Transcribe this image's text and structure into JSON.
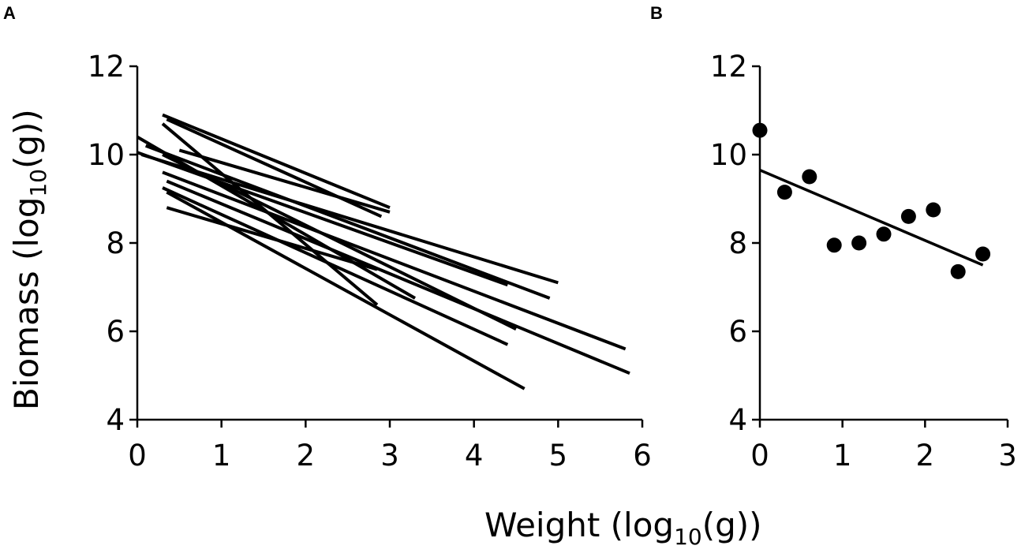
{
  "chart_data": [
    {
      "panel": "A",
      "type": "line",
      "xlabel": "Weight (log10(g))",
      "ylabel": "Biomass (log10(g))",
      "xlim": [
        0,
        6
      ],
      "ylim": [
        4,
        12
      ],
      "xticks": [
        "0",
        "1",
        "2",
        "3",
        "4",
        "5",
        "6"
      ],
      "yticks": [
        "4",
        "6",
        "8",
        "10",
        "12"
      ],
      "segments": [
        {
          "x": [
            0.3,
            3.0
          ],
          "y": [
            10.9,
            8.8
          ]
        },
        {
          "x": [
            0.35,
            2.9
          ],
          "y": [
            10.8,
            8.6
          ]
        },
        {
          "x": [
            0.3,
            2.85
          ],
          "y": [
            10.7,
            6.6
          ]
        },
        {
          "x": [
            0.0,
            3.3
          ],
          "y": [
            10.4,
            6.75
          ]
        },
        {
          "x": [
            0.0,
            4.4
          ],
          "y": [
            10.05,
            7.05
          ]
        },
        {
          "x": [
            0.05,
            5.0
          ],
          "y": [
            10.0,
            7.1
          ]
        },
        {
          "x": [
            0.1,
            4.9
          ],
          "y": [
            10.2,
            6.75
          ]
        },
        {
          "x": [
            0.3,
            4.5
          ],
          "y": [
            10.0,
            6.05
          ]
        },
        {
          "x": [
            0.3,
            5.8
          ],
          "y": [
            9.6,
            5.6
          ]
        },
        {
          "x": [
            0.35,
            5.85
          ],
          "y": [
            9.4,
            5.05
          ]
        },
        {
          "x": [
            0.3,
            4.4
          ],
          "y": [
            9.25,
            5.7
          ]
        },
        {
          "x": [
            0.35,
            4.6
          ],
          "y": [
            9.15,
            4.7
          ]
        },
        {
          "x": [
            0.35,
            2.85
          ],
          "y": [
            8.8,
            7.4
          ]
        },
        {
          "x": [
            0.5,
            3.0
          ],
          "y": [
            10.1,
            8.7
          ]
        }
      ]
    },
    {
      "panel": "B",
      "type": "scatter",
      "xlabel": "Weight (log10(g))",
      "ylabel": "Biomass (log10(g))",
      "xlim": [
        0,
        3
      ],
      "ylim": [
        4,
        12
      ],
      "xticks": [
        "0",
        "1",
        "2",
        "3"
      ],
      "yticks": [
        "4",
        "6",
        "8",
        "10",
        "12"
      ],
      "points": {
        "x": [
          0.0,
          0.3,
          0.6,
          0.9,
          1.2,
          1.5,
          1.8,
          2.1,
          2.4,
          2.7
        ],
        "y": [
          10.55,
          9.15,
          9.5,
          7.95,
          8.0,
          8.2,
          8.6,
          8.75,
          7.35,
          7.75
        ]
      },
      "fit": {
        "x": [
          0.0,
          2.7
        ],
        "y": [
          9.65,
          7.5
        ]
      }
    }
  ],
  "labels": {
    "panel_a": "A",
    "panel_b": "B",
    "ylabel_main": "Biomass (log",
    "ylabel_sub": "10",
    "ylabel_end": "(g))",
    "xlabel_main": "Weight (log",
    "xlabel_sub": "10",
    "xlabel_end": "(g))"
  }
}
